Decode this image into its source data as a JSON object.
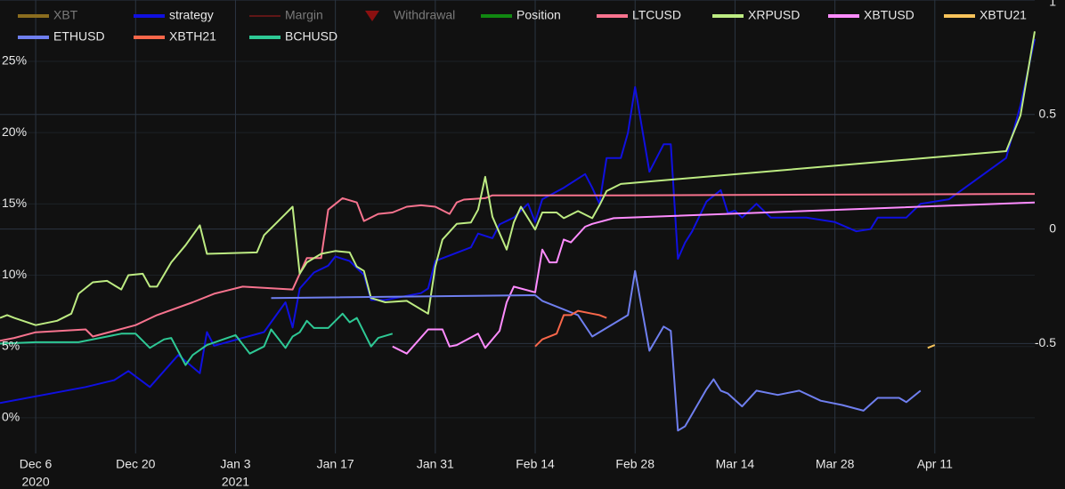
{
  "chart_data": {
    "type": "line",
    "xlim": [
      "2020-12-01",
      "2021-04-25"
    ],
    "xticks": [
      {
        "value": "2020-12-06",
        "label": [
          "Dec 6",
          "2020"
        ]
      },
      {
        "value": "2020-12-20",
        "label": [
          "Dec 20"
        ]
      },
      {
        "value": "2021-01-03",
        "label": [
          "Jan 3",
          "2021"
        ]
      },
      {
        "value": "2021-01-17",
        "label": [
          "Jan 17"
        ]
      },
      {
        "value": "2021-01-31",
        "label": [
          "Jan 31"
        ]
      },
      {
        "value": "2021-02-14",
        "label": [
          "Feb 14"
        ]
      },
      {
        "value": "2021-02-28",
        "label": [
          "Feb 28"
        ]
      },
      {
        "value": "2021-03-14",
        "label": [
          "Mar 14"
        ]
      },
      {
        "value": "2021-03-28",
        "label": [
          "Mar 28"
        ]
      },
      {
        "value": "2021-04-11",
        "label": [
          "Apr 11"
        ]
      }
    ],
    "ylim": [
      -2.5,
      29.3
    ],
    "yticks": [
      {
        "value": 0,
        "label": "0%"
      },
      {
        "value": 5,
        "label": "5%"
      },
      {
        "value": 10,
        "label": "10%"
      },
      {
        "value": 15,
        "label": "15%"
      },
      {
        "value": 20,
        "label": "20%"
      },
      {
        "value": 25,
        "label": "25%"
      }
    ],
    "y2lim": [
      -0.98,
      1.0
    ],
    "y2ticks": [
      -0.5,
      0,
      0.5,
      1
    ],
    "grid": true,
    "legend": "top",
    "series": [
      {
        "name": "XBT",
        "color": "#8b6d1f",
        "hidden": true,
        "x": [],
        "values": []
      },
      {
        "name": "strategy",
        "color": "#1010e0",
        "axis": "y2",
        "x": [
          "2020-12-01",
          "2020-12-13",
          "2020-12-17",
          "2020-12-19",
          "2020-12-22",
          "2020-12-26",
          "2020-12-29",
          "2020-12-30",
          "2020-12-31",
          "2021-01-07",
          "2021-01-10",
          "2021-01-11",
          "2021-01-12",
          "2021-01-14",
          "2021-01-16",
          "2021-01-17",
          "2021-01-19",
          "2021-01-21",
          "2021-01-22",
          "2021-01-24",
          "2021-01-29",
          "2021-01-30",
          "2021-01-31",
          "2021-02-05",
          "2021-02-06",
          "2021-02-08",
          "2021-02-09",
          "2021-02-11",
          "2021-02-13",
          "2021-02-14",
          "2021-02-15",
          "2021-02-18",
          "2021-02-21",
          "2021-02-22",
          "2021-02-23",
          "2021-02-24",
          "2021-02-26",
          "2021-02-27",
          "2021-02-28",
          "2021-03-02",
          "2021-03-04",
          "2021-03-05",
          "2021-03-06",
          "2021-03-07",
          "2021-03-08",
          "2021-03-10",
          "2021-03-12",
          "2021-03-13",
          "2021-03-14",
          "2021-03-15",
          "2021-03-17",
          "2021-03-19",
          "2021-03-24",
          "2021-03-28",
          "2021-03-31",
          "2021-04-02",
          "2021-04-03",
          "2021-04-07",
          "2021-04-09",
          "2021-04-13",
          "2021-04-21",
          "2021-04-23",
          "2021-04-25"
        ],
        "values": [
          -0.76,
          -0.69,
          -0.66,
          -0.62,
          -0.69,
          -0.55,
          -0.63,
          -0.45,
          -0.51,
          -0.45,
          -0.32,
          -0.43,
          -0.26,
          -0.19,
          -0.16,
          -0.12,
          -0.14,
          -0.2,
          -0.31,
          -0.31,
          -0.28,
          -0.26,
          -0.14,
          -0.08,
          -0.02,
          -0.04,
          0.02,
          0.05,
          0.11,
          0.03,
          0.13,
          0.18,
          0.24,
          0.18,
          0.11,
          0.31,
          0.31,
          0.42,
          0.62,
          0.25,
          0.37,
          0.37,
          -0.13,
          -0.06,
          -0.01,
          0.12,
          0.17,
          0.07,
          0.08,
          0.05,
          0.11,
          0.05,
          0.05,
          0.03,
          -0.01,
          0.0,
          0.05,
          0.05,
          0.11,
          0.13,
          0.31,
          0.54,
          0.83
        ]
      },
      {
        "name": "Margin",
        "color": "#7a1818",
        "hidden": true,
        "x": [],
        "values": []
      },
      {
        "name": "Withdrawal",
        "color": "#8b1010",
        "marker": "triangle-down",
        "hidden": true,
        "x": [],
        "values": []
      },
      {
        "name": "Position",
        "color": "#118811",
        "x": [],
        "values": []
      },
      {
        "name": "LTCUSD",
        "color": "#f7738e",
        "x": [
          "2020-12-01",
          "2020-12-03",
          "2020-12-06",
          "2020-12-13",
          "2020-12-14",
          "2020-12-17",
          "2020-12-20",
          "2020-12-23",
          "2020-12-28",
          "2020-12-31",
          "2021-01-04",
          "2021-01-11",
          "2021-01-13",
          "2021-01-15",
          "2021-01-16",
          "2021-01-18",
          "2021-01-20",
          "2021-01-21",
          "2021-01-23",
          "2021-01-25",
          "2021-01-27",
          "2021-01-29",
          "2021-01-31",
          "2021-02-02",
          "2021-02-03",
          "2021-02-04",
          "2021-02-07",
          "2021-02-08",
          "2021-02-26",
          "2021-04-25"
        ],
        "values": [
          5.4,
          5.6,
          6.0,
          6.2,
          5.7,
          6.1,
          6.5,
          7.2,
          8.1,
          8.7,
          9.2,
          9.0,
          11.2,
          11.2,
          14.6,
          15.4,
          15.1,
          13.8,
          14.3,
          14.4,
          14.8,
          14.9,
          14.8,
          14.3,
          15.1,
          15.3,
          15.4,
          15.6,
          15.6,
          15.7
        ]
      },
      {
        "name": "XRPUSD",
        "color": "#bdeb82",
        "x": [
          "2020-12-01",
          "2020-12-02",
          "2020-12-03",
          "2020-12-06",
          "2020-12-09",
          "2020-12-11",
          "2020-12-12",
          "2020-12-14",
          "2020-12-16",
          "2020-12-18",
          "2020-12-19",
          "2020-12-21",
          "2020-12-22",
          "2020-12-23",
          "2020-12-25",
          "2020-12-27",
          "2020-12-29",
          "2020-12-30",
          "2021-01-06",
          "2021-01-07",
          "2021-01-10",
          "2021-01-11",
          "2021-01-12",
          "2021-01-13",
          "2021-01-15",
          "2021-01-17",
          "2021-01-19",
          "2021-01-20",
          "2021-01-21",
          "2021-01-22",
          "2021-01-24",
          "2021-01-27",
          "2021-01-30",
          "2021-01-31",
          "2021-02-01",
          "2021-02-03",
          "2021-02-05",
          "2021-02-06",
          "2021-02-07",
          "2021-02-08",
          "2021-02-10",
          "2021-02-11",
          "2021-02-12",
          "2021-02-14",
          "2021-02-15",
          "2021-02-17",
          "2021-02-18",
          "2021-02-20",
          "2021-02-22",
          "2021-02-23",
          "2021-02-24",
          "2021-02-26",
          "2021-04-21",
          "2021-04-23",
          "2021-04-25"
        ],
        "values": [
          7.0,
          7.2,
          7.0,
          6.5,
          6.8,
          7.3,
          8.7,
          9.5,
          9.6,
          9.0,
          10.0,
          10.1,
          9.2,
          9.2,
          10.9,
          12.1,
          13.5,
          11.5,
          11.6,
          12.8,
          14.3,
          14.8,
          10.1,
          10.9,
          11.5,
          11.7,
          11.6,
          10.6,
          10.3,
          8.4,
          8.1,
          8.2,
          7.3,
          10.6,
          12.5,
          13.6,
          13.7,
          14.6,
          16.9,
          14.1,
          11.8,
          13.7,
          14.8,
          13.2,
          14.4,
          14.4,
          14.0,
          14.5,
          14.0,
          14.9,
          15.9,
          16.4,
          18.7,
          21.2,
          27.1
        ]
      },
      {
        "name": "XBTUSD",
        "color": "#ff8cff",
        "x": [
          "2021-01-25",
          "2021-01-27",
          "2021-01-30",
          "2021-02-01",
          "2021-02-02",
          "2021-02-03",
          "2021-02-06",
          "2021-02-07",
          "2021-02-09",
          "2021-02-10",
          "2021-02-11",
          "2021-02-14",
          "2021-02-15",
          "2021-02-16",
          "2021-02-17",
          "2021-02-18",
          "2021-02-19",
          "2021-02-21",
          "2021-02-22",
          "2021-02-25",
          "2021-04-25"
        ],
        "values": [
          5.0,
          4.5,
          6.2,
          6.2,
          5.0,
          5.1,
          5.9,
          4.9,
          6.1,
          8.1,
          9.2,
          8.8,
          11.8,
          10.9,
          10.9,
          12.5,
          12.3,
          13.4,
          13.6,
          14.0,
          15.1
        ]
      },
      {
        "name": "XBTU21",
        "color": "#f7c35a",
        "x": [
          "2021-04-10",
          "2021-04-11"
        ],
        "values": [
          4.9,
          5.1
        ]
      },
      {
        "name": "ETHUSD",
        "color": "#6f7fef",
        "x": [
          "2021-01-08",
          "2021-02-14",
          "2021-02-15",
          "2021-02-20",
          "2021-02-22",
          "2021-02-27",
          "2021-02-28",
          "2021-03-02",
          "2021-03-04",
          "2021-03-05",
          "2021-03-06",
          "2021-03-07",
          "2021-03-10",
          "2021-03-11",
          "2021-03-12",
          "2021-03-13",
          "2021-03-15",
          "2021-03-17",
          "2021-03-20",
          "2021-03-23",
          "2021-03-26",
          "2021-03-29",
          "2021-04-01",
          "2021-04-03",
          "2021-04-06",
          "2021-04-07",
          "2021-04-09"
        ],
        "values": [
          8.4,
          8.6,
          8.2,
          7.2,
          5.7,
          7.2,
          10.3,
          4.7,
          6.4,
          6.1,
          -0.9,
          -0.6,
          2.0,
          2.7,
          1.9,
          1.7,
          0.8,
          1.9,
          1.6,
          1.9,
          1.2,
          0.9,
          0.5,
          1.4,
          1.4,
          1.1,
          1.9
        ]
      },
      {
        "name": "XBTH21",
        "color": "#f9674a",
        "x": [
          "2021-02-14",
          "2021-02-15",
          "2021-02-17",
          "2021-02-18",
          "2021-02-19",
          "2021-02-20",
          "2021-02-22",
          "2021-02-23",
          "2021-02-24"
        ],
        "values": [
          5.0,
          5.5,
          5.9,
          7.2,
          7.2,
          7.5,
          7.3,
          7.2,
          7.0
        ]
      },
      {
        "name": "BCHUSD",
        "color": "#2ec995",
        "x": [
          "2020-12-01",
          "2020-12-06",
          "2020-12-12",
          "2020-12-15",
          "2020-12-18",
          "2020-12-20",
          "2020-12-22",
          "2020-12-24",
          "2020-12-25",
          "2020-12-27",
          "2020-12-28",
          "2020-12-30",
          "2021-01-03",
          "2021-01-05",
          "2021-01-07",
          "2021-01-08",
          "2021-01-10",
          "2021-01-11",
          "2021-01-12",
          "2021-01-13",
          "2021-01-14",
          "2021-01-16",
          "2021-01-18",
          "2021-01-19",
          "2021-01-20",
          "2021-01-22",
          "2021-01-23",
          "2021-01-25"
        ],
        "values": [
          5.2,
          5.3,
          5.3,
          5.6,
          5.9,
          5.9,
          4.9,
          5.5,
          5.6,
          3.7,
          4.4,
          5.1,
          5.8,
          4.5,
          5.0,
          6.2,
          4.9,
          5.7,
          6.0,
          6.8,
          6.3,
          6.3,
          7.3,
          6.7,
          7.0,
          5.0,
          5.6,
          5.9
        ]
      }
    ]
  }
}
